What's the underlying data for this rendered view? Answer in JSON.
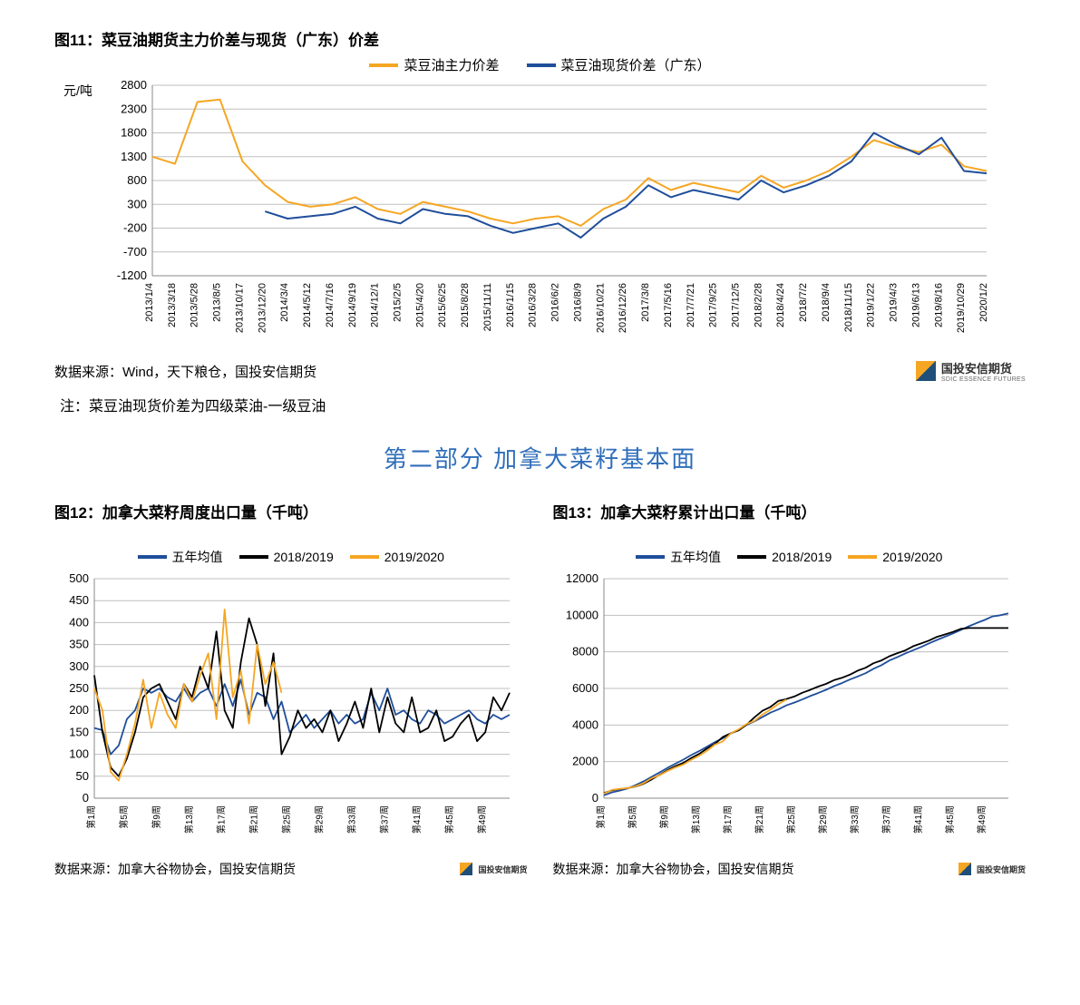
{
  "chart11": {
    "title": "图11：菜豆油期货主力价差与现货（广东）价差",
    "yAxisLabel": "元/吨",
    "legend": [
      {
        "label": "菜豆油主力价差",
        "color": "#f5a623"
      },
      {
        "label": "菜豆油现货价差（广东）",
        "color": "#1f4e9b"
      }
    ],
    "yTicks": [
      -1200,
      -700,
      -200,
      300,
      800,
      1300,
      1800,
      2300,
      2800
    ],
    "ylim": [
      -1200,
      2800
    ],
    "xLabels": [
      "2013/1/4",
      "2013/3/18",
      "2013/5/28",
      "2013/8/5",
      "2013/10/17",
      "2013/12/20",
      "2014/3/4",
      "2014/5/12",
      "2014/7/16",
      "2014/9/19",
      "2014/12/1",
      "2015/2/5",
      "2015/4/20",
      "2015/6/25",
      "2015/8/28",
      "2015/11/11",
      "2016/1/15",
      "2016/3/28",
      "2016/6/2",
      "2016/8/9",
      "2016/10/21",
      "2016/12/26",
      "2017/3/8",
      "2017/5/16",
      "2017/7/21",
      "2017/9/25",
      "2017/12/5",
      "2018/2/28",
      "2018/4/24",
      "2018/7/2",
      "2018/9/4",
      "2018/11/15",
      "2019/1/22",
      "2019/4/3",
      "2019/6/13",
      "2019/8/16",
      "2019/10/29",
      "2020/1/2"
    ],
    "seriesA_color": "#f5a623",
    "seriesB_color": "#1f4e9b",
    "seriesA": [
      1300,
      1150,
      2450,
      2500,
      1200,
      700,
      350,
      250,
      300,
      450,
      200,
      100,
      350,
      250,
      150,
      0,
      -100,
      0,
      50,
      -150,
      200,
      400,
      850,
      600,
      750,
      650,
      550,
      900,
      650,
      800,
      1000,
      1300,
      1650,
      1500,
      1400,
      1550,
      1100,
      1000
    ],
    "seriesB": [
      null,
      null,
      null,
      null,
      null,
      150,
      0,
      50,
      100,
      250,
      0,
      -100,
      200,
      100,
      50,
      -150,
      -300,
      -200,
      -100,
      -400,
      0,
      250,
      700,
      450,
      600,
      500,
      400,
      800,
      550,
      700,
      900,
      1200,
      1800,
      1550,
      1350,
      1700,
      1000,
      950
    ],
    "gridColor": "#bfbfbf",
    "background": "#ffffff",
    "lineWidth": 2,
    "source": "数据来源：Wind，天下粮仓，国投安信期货",
    "note": "注：菜豆油现货价差为四级菜油-一级豆油"
  },
  "sectionTitle": "第二部分  加拿大菜籽基本面",
  "chart12": {
    "title": "图12：加拿大菜籽周度出口量（千吨）",
    "legend": [
      {
        "label": "五年均值",
        "color": "#1f4e9b"
      },
      {
        "label": "2018/2019",
        "color": "#000000"
      },
      {
        "label": "2019/2020",
        "color": "#f5a623"
      }
    ],
    "yTicks": [
      0,
      50,
      100,
      150,
      200,
      250,
      300,
      350,
      400,
      450,
      500
    ],
    "ylim": [
      0,
      500
    ],
    "xLabels": [
      "第1周",
      "第5周",
      "第9周",
      "第13周",
      "第17周",
      "第21周",
      "第25周",
      "第29周",
      "第33周",
      "第37周",
      "第41周",
      "第45周",
      "第49周"
    ],
    "nPoints": 52,
    "seriesA_color": "#1f4e9b",
    "seriesB_color": "#000000",
    "seriesC_color": "#f5a623",
    "seriesA": [
      160,
      155,
      100,
      120,
      180,
      200,
      250,
      240,
      250,
      230,
      220,
      250,
      220,
      240,
      250,
      210,
      260,
      210,
      270,
      190,
      240,
      230,
      180,
      220,
      150,
      170,
      190,
      160,
      180,
      200,
      170,
      190,
      170,
      180,
      240,
      200,
      250,
      190,
      200,
      180,
      170,
      200,
      190,
      170,
      180,
      190,
      200,
      180,
      170,
      190,
      180,
      190
    ],
    "seriesB": [
      280,
      150,
      70,
      50,
      90,
      150,
      230,
      250,
      260,
      220,
      180,
      260,
      230,
      300,
      250,
      380,
      200,
      160,
      310,
      410,
      350,
      210,
      330,
      100,
      140,
      200,
      160,
      180,
      150,
      200,
      130,
      170,
      220,
      160,
      250,
      150,
      230,
      170,
      150,
      230,
      150,
      160,
      200,
      130,
      140,
      170,
      190,
      130,
      150,
      230,
      200,
      240
    ],
    "seriesC": [
      250,
      200,
      60,
      40,
      100,
      170,
      270,
      160,
      240,
      190,
      160,
      260,
      220,
      280,
      330,
      180,
      430,
      230,
      290,
      170,
      350,
      260,
      310,
      240,
      null,
      null,
      null,
      null,
      null,
      null,
      null,
      null,
      null,
      null,
      null,
      null,
      null,
      null,
      null,
      null,
      null,
      null,
      null,
      null,
      null,
      null,
      null,
      null,
      null,
      null,
      null,
      null
    ],
    "gridColor": "#bfbfbf",
    "lineWidth": 1.8,
    "source": "数据来源：加拿大谷物协会，国投安信期货"
  },
  "chart13": {
    "title": "图13：加拿大菜籽累计出口量（千吨）",
    "legend": [
      {
        "label": "五年均值",
        "color": "#1f4e9b"
      },
      {
        "label": "2018/2019",
        "color": "#000000"
      },
      {
        "label": "2019/2020",
        "color": "#f5a623"
      }
    ],
    "yTicks": [
      0,
      2000,
      4000,
      6000,
      8000,
      10000,
      12000
    ],
    "ylim": [
      0,
      12000
    ],
    "xLabels": [
      "第1周",
      "第5周",
      "第9周",
      "第13周",
      "第17周",
      "第21周",
      "第25周",
      "第29周",
      "第33周",
      "第37周",
      "第41周",
      "第45周",
      "第49周"
    ],
    "nPoints": 52,
    "seriesA_color": "#1f4e9b",
    "seriesB_color": "#000000",
    "seriesC_color": "#f5a623",
    "seriesA": [
      160,
      315,
      415,
      535,
      715,
      915,
      1165,
      1405,
      1655,
      1885,
      2105,
      2355,
      2575,
      2815,
      3065,
      3275,
      3535,
      3745,
      4015,
      4205,
      4445,
      4675,
      4855,
      5075,
      5225,
      5395,
      5585,
      5745,
      5925,
      6125,
      6295,
      6485,
      6655,
      6835,
      7075,
      7275,
      7525,
      7715,
      7915,
      8095,
      8265,
      8465,
      8655,
      8825,
      9005,
      9195,
      9395,
      9575,
      9745,
      9935,
      10000,
      10100
    ],
    "seriesB": [
      280,
      430,
      500,
      550,
      640,
      790,
      1020,
      1270,
      1530,
      1750,
      1930,
      2190,
      2420,
      2720,
      2970,
      3350,
      3550,
      3710,
      4020,
      4430,
      4780,
      4990,
      5320,
      5420,
      5560,
      5760,
      5920,
      6100,
      6250,
      6450,
      6580,
      6750,
      6970,
      7130,
      7380,
      7530,
      7760,
      7930,
      8080,
      8310,
      8460,
      8620,
      8820,
      8950,
      9090,
      9260,
      9300,
      9300,
      9300,
      9300,
      9300,
      9300
    ],
    "seriesC": [
      250,
      450,
      510,
      550,
      650,
      820,
      1090,
      1250,
      1490,
      1680,
      1840,
      2100,
      2320,
      2600,
      2930,
      3110,
      3540,
      3770,
      4060,
      4230,
      4580,
      4840,
      5150,
      5390,
      null,
      null,
      null,
      null,
      null,
      null,
      null,
      null,
      null,
      null,
      null,
      null,
      null,
      null,
      null,
      null,
      null,
      null,
      null,
      null,
      null,
      null,
      null,
      null,
      null,
      null,
      null,
      null
    ],
    "gridColor": "#bfbfbf",
    "lineWidth": 1.8,
    "source": "数据来源：加拿大谷物协会，国投安信期货"
  },
  "logo": {
    "cn": "国投安信期货",
    "en": "SDIC ESSENCE FUTURES"
  }
}
